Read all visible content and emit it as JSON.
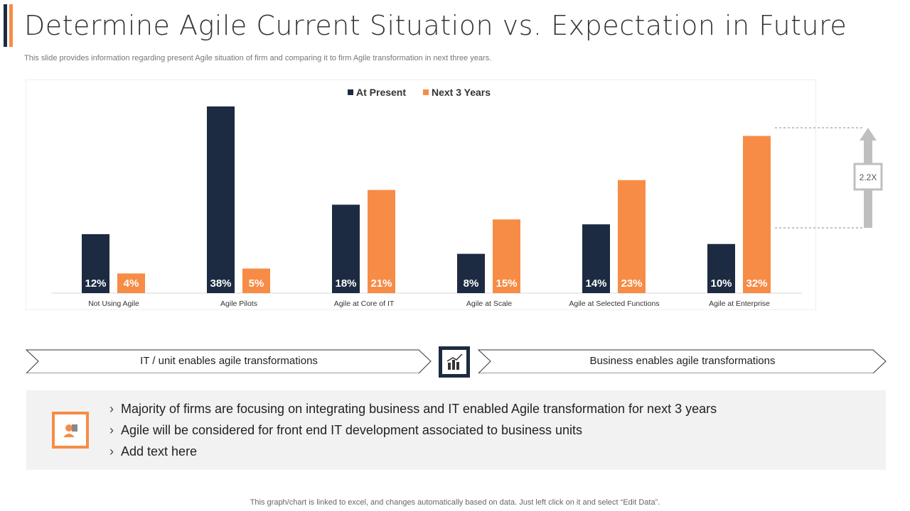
{
  "header": {
    "title": "Determine Agile Current Situation vs. Expectation in Future",
    "subtitle": "This slide provides information regarding present Agile situation of firm and comparing it to firm Agile transformation in next three years."
  },
  "chart_data": {
    "type": "bar",
    "categories": [
      "Not Using Agile",
      "Agile Pilots",
      "Agile at Core of IT",
      "Agile at Scale",
      "Agile at Selected Functions",
      "Agile at Enterprise"
    ],
    "series": [
      {
        "name": "At Present",
        "values": [
          12,
          38,
          18,
          8,
          14,
          10
        ],
        "color": "#1c2b41"
      },
      {
        "name": "Next 3 Years",
        "values": [
          4,
          5,
          21,
          15,
          23,
          32
        ],
        "color": "#f78c46"
      }
    ],
    "ylim": [
      0,
      40
    ],
    "legend": "top-center",
    "grid": false,
    "annotation": "2.2X"
  },
  "flow": {
    "left": "IT / unit enables agile transformations",
    "right": "Business enables agile transformations",
    "center_icon": "growth-chart-icon"
  },
  "bullets": {
    "icon": "engineer-icon",
    "items": [
      "Majority of firms are focusing on integrating business and IT enabled Agile transformation for next 3 years",
      "Agile will be considered for front end IT development associated to business units",
      "Add text here"
    ]
  },
  "footer": "This graph/chart is linked to excel,  and changes automatically based on data. Just left click on it and select “Edit Data”."
}
